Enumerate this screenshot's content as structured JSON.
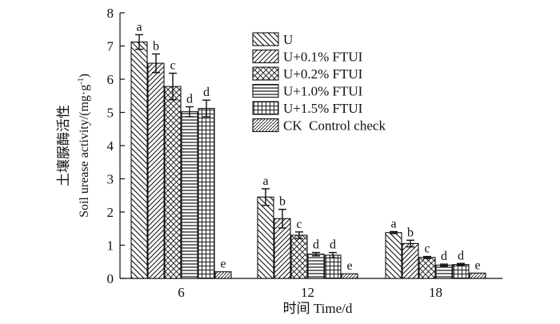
{
  "chart_data": {
    "type": "bar",
    "title": "",
    "xlabel": "时间 Time/d",
    "ylabel_zh": "土壤脲酶活性",
    "ylabel_en": "Soil urease activity/(mg·g",
    "ylabel_sup": "-1",
    "ylabel_close": ")",
    "ylim": [
      0,
      8
    ],
    "yticks": [
      "0",
      "1",
      "2",
      "3",
      "4",
      "5",
      "6",
      "7",
      "8"
    ],
    "categories": [
      "6",
      "12",
      "18"
    ],
    "legend_position": "top-right",
    "series": [
      {
        "name": "U",
        "pattern": "diag-down",
        "values": [
          7.12,
          2.45,
          1.38
        ],
        "errors": [
          0.22,
          0.25,
          0.03
        ],
        "labels": [
          "a",
          "a",
          "a"
        ]
      },
      {
        "name": "U+0.1% FTUI",
        "pattern": "diag-up",
        "values": [
          6.48,
          1.8,
          1.05
        ],
        "errors": [
          0.28,
          0.28,
          0.1
        ],
        "labels": [
          "b",
          "b",
          "b"
        ]
      },
      {
        "name": "U+0.2% FTUI",
        "pattern": "crosshatch",
        "values": [
          5.78,
          1.3,
          0.63
        ],
        "errors": [
          0.4,
          0.1,
          0.03
        ],
        "labels": [
          "c",
          "c",
          "c"
        ]
      },
      {
        "name": "U+1.0% FTUI",
        "pattern": "horizontal",
        "values": [
          5.02,
          0.73,
          0.4
        ],
        "errors": [
          0.15,
          0.05,
          0.03
        ],
        "labels": [
          "d",
          "d",
          "d"
        ]
      },
      {
        "name": "U+1.5% FTUI",
        "pattern": "grid",
        "values": [
          5.12,
          0.7,
          0.42
        ],
        "errors": [
          0.25,
          0.08,
          0.03
        ],
        "labels": [
          "d",
          "d",
          "d"
        ]
      },
      {
        "name": "CK  Control check",
        "pattern": "diag-fine",
        "values": [
          0.2,
          0.14,
          0.16
        ],
        "errors": [
          0.0,
          0.0,
          0.0
        ],
        "labels": [
          "e",
          "e",
          "e"
        ]
      }
    ]
  }
}
